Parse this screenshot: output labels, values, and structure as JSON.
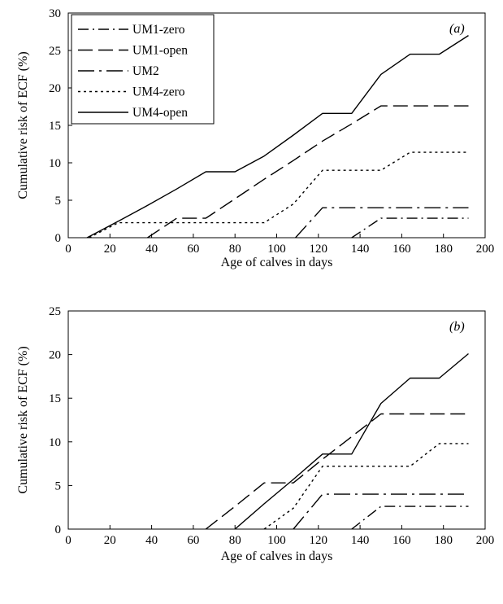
{
  "chart_data": [
    {
      "type": "line",
      "panel_label": "(a)",
      "xlabel": "Age of calves in days",
      "ylabel": "Cumulative risk of ECF (%)",
      "xlim": [
        0,
        200
      ],
      "ylim": [
        0,
        30
      ],
      "x_ticks": [
        "0",
        "20",
        "40",
        "60",
        "80",
        "100",
        "120",
        "140",
        "160",
        "180",
        "200"
      ],
      "y_ticks": [
        "0",
        "5",
        "10",
        "15",
        "20",
        "25",
        "30"
      ],
      "legend": {
        "position": "top-left",
        "entries": [
          "UM1-zero",
          "UM1-open",
          "UM2",
          "UM4-zero",
          "UM4-open"
        ]
      },
      "series": [
        {
          "name": "UM1-zero",
          "style": "dashdot",
          "points": [
            [
              136,
              0
            ],
            [
              150,
              2.6
            ],
            [
              164,
              2.6
            ],
            [
              178,
              2.6
            ],
            [
              192,
              2.6
            ]
          ]
        },
        {
          "name": "UM1-open",
          "style": "longdash",
          "points": [
            [
              38,
              0
            ],
            [
              52,
              2.6
            ],
            [
              66,
              2.6
            ],
            [
              80,
              5.2
            ],
            [
              94,
              7.8
            ],
            [
              108,
              10.3
            ],
            [
              122,
              12.9
            ],
            [
              136,
              15.2
            ],
            [
              150,
              17.6
            ],
            [
              164,
              17.6
            ],
            [
              178,
              17.6
            ],
            [
              192,
              17.6
            ]
          ]
        },
        {
          "name": "UM2",
          "style": "dashdotlong",
          "points": [
            [
              109,
              0
            ],
            [
              122,
              4
            ],
            [
              136,
              4
            ],
            [
              150,
              4
            ],
            [
              164,
              4
            ],
            [
              178,
              4
            ],
            [
              192,
              4
            ]
          ]
        },
        {
          "name": "UM4-zero",
          "style": "dotted",
          "points": [
            [
              10,
              0
            ],
            [
              24,
              2
            ],
            [
              38,
              2
            ],
            [
              52,
              2
            ],
            [
              66,
              2
            ],
            [
              80,
              2
            ],
            [
              94,
              2
            ],
            [
              108,
              4.5
            ],
            [
              122,
              9
            ],
            [
              136,
              9
            ],
            [
              150,
              9
            ],
            [
              164,
              11.4
            ],
            [
              178,
              11.4
            ],
            [
              192,
              11.4
            ]
          ]
        },
        {
          "name": "UM4-open",
          "style": "solid",
          "points": [
            [
              9,
              0
            ],
            [
              24,
              2.2
            ],
            [
              38,
              4.3
            ],
            [
              52,
              6.5
            ],
            [
              66,
              8.8
            ],
            [
              80,
              8.8
            ],
            [
              94,
              10.9
            ],
            [
              108,
              13.7
            ],
            [
              122,
              16.6
            ],
            [
              136,
              16.6
            ],
            [
              150,
              21.8
            ],
            [
              164,
              24.5
            ],
            [
              178,
              24.5
            ],
            [
              192,
              27
            ]
          ]
        }
      ]
    },
    {
      "type": "line",
      "panel_label": "(b)",
      "xlabel": "Age of calves in days",
      "ylabel": "Cumulative risk of ECF (%)",
      "xlim": [
        0,
        200
      ],
      "ylim": [
        0,
        25
      ],
      "x_ticks": [
        "0",
        "20",
        "40",
        "60",
        "80",
        "100",
        "120",
        "140",
        "160",
        "180",
        "200"
      ],
      "y_ticks": [
        "0",
        "5",
        "10",
        "15",
        "20",
        "25"
      ],
      "series": [
        {
          "name": "UM1-zero",
          "style": "dashdot",
          "points": [
            [
              136,
              0
            ],
            [
              150,
              2.6
            ],
            [
              164,
              2.6
            ],
            [
              178,
              2.6
            ],
            [
              192,
              2.6
            ]
          ]
        },
        {
          "name": "UM1-open",
          "style": "longdash",
          "points": [
            [
              66,
              0
            ],
            [
              80,
              2.6
            ],
            [
              94,
              5.3
            ],
            [
              108,
              5.3
            ],
            [
              122,
              8
            ],
            [
              136,
              10.6
            ],
            [
              150,
              13.2
            ],
            [
              164,
              13.2
            ],
            [
              178,
              13.2
            ],
            [
              192,
              13.2
            ]
          ]
        },
        {
          "name": "UM2",
          "style": "dashdotlong",
          "points": [
            [
              108,
              0
            ],
            [
              122,
              4
            ],
            [
              136,
              4
            ],
            [
              150,
              4
            ],
            [
              164,
              4
            ],
            [
              178,
              4
            ],
            [
              192,
              4
            ]
          ]
        },
        {
          "name": "UM4-zero",
          "style": "dotted",
          "points": [
            [
              94,
              0
            ],
            [
              108,
              2.4
            ],
            [
              122,
              7.2
            ],
            [
              136,
              7.2
            ],
            [
              150,
              7.2
            ],
            [
              164,
              7.2
            ],
            [
              178,
              9.8
            ],
            [
              192,
              9.8
            ]
          ]
        },
        {
          "name": "UM4-open",
          "style": "solid",
          "points": [
            [
              80,
              0
            ],
            [
              94,
              2.9
            ],
            [
              108,
              5.7
            ],
            [
              122,
              8.6
            ],
            [
              136,
              8.6
            ],
            [
              150,
              14.4
            ],
            [
              164,
              17.3
            ],
            [
              178,
              17.3
            ],
            [
              192,
              20.1
            ]
          ]
        }
      ]
    }
  ]
}
